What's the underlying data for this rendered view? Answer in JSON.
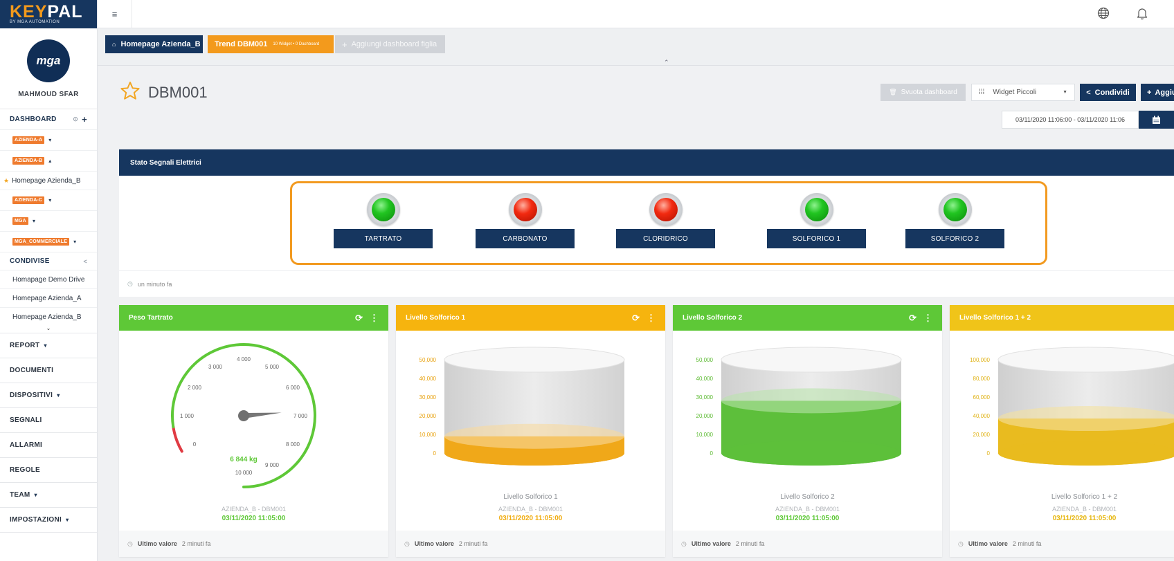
{
  "app": {
    "brand_key": "KEY",
    "brand_pal": "PAL",
    "brand_tagline": "BY MGA AUTOMATION",
    "logo_text": "mga"
  },
  "sidebar": {
    "username": "MAHMOUD SFAR",
    "dashboard_header": "DASHBOARD",
    "groups": [
      {
        "label": "AZIENDA-A",
        "caret": "▾"
      },
      {
        "label": "AZIENDA-B",
        "caret": "▴"
      }
    ],
    "starred_item": "Homepage Azienda_B",
    "groups2": [
      {
        "label": "AZIENDA-C",
        "caret": "▾"
      },
      {
        "label": "MGA",
        "caret": "▾"
      },
      {
        "label": "MGA_COMMERCIALE",
        "caret": "▾"
      }
    ],
    "shared_header": "CONDIVISE",
    "shared_items": [
      "Homapage Demo Drive",
      "Homepage Azienda_A",
      "Homepage Azienda_B"
    ],
    "menu": [
      {
        "label": "REPORT",
        "caret": "▾"
      },
      {
        "label": "DOCUMENTI",
        "caret": ""
      },
      {
        "label": "DISPOSITIVI",
        "caret": "▾"
      },
      {
        "label": "SEGNALI",
        "caret": ""
      },
      {
        "label": "ALLARMI",
        "caret": ""
      },
      {
        "label": "REGOLE",
        "caret": ""
      },
      {
        "label": "TEAM",
        "caret": "▾"
      },
      {
        "label": "IMPOSTAZIONI",
        "caret": "▾"
      }
    ]
  },
  "tabs": {
    "home": "Homepage Azienda_B",
    "trend": "Trend DBM001",
    "trend_meta": "10 Widget • 0 Dashboard",
    "add": "Aggiungi dashboard figlia"
  },
  "header": {
    "title": "DBM001",
    "clear_label": "Svuota dashboard",
    "widget_size": "Widget Piccoli",
    "share_label": "Condividi",
    "add_label": "Aggiungi",
    "date_range": "03/11/2020 11:06:00 - 03/11/2020 11:06"
  },
  "status_panel": {
    "title": "Stato Segnali Elettrici",
    "signals": [
      {
        "label": "TARTRATO",
        "state": "green"
      },
      {
        "label": "CARBONATO",
        "state": "red"
      },
      {
        "label": "CLORIDRICO",
        "state": "red"
      },
      {
        "label": "SOLFORICO 1",
        "state": "green"
      },
      {
        "label": "SOLFORICO 2",
        "state": "green"
      }
    ],
    "updated": "un minuto fa"
  },
  "widgets": [
    {
      "title": "Peso Tartrato",
      "color": "#5ec837",
      "type": "gauge",
      "gauge": {
        "min": 0,
        "max": 10000,
        "value": 6844,
        "display": "6 844 kg",
        "ticks": [
          "0",
          "1 000",
          "2 000",
          "3 000",
          "4 000",
          "5 000",
          "6 000",
          "7 000",
          "8 000",
          "9 000",
          "10 000"
        ]
      },
      "source": "AZIENDA_B - DBM001",
      "timestamp": "03/11/2020 11:05:00",
      "ts_color": "#5ec837",
      "footer_label": "Ultimo valore",
      "footer_time": "2 minuti fa"
    },
    {
      "title": "Livello Solforico 1",
      "color": "#f6b40e",
      "type": "tank",
      "tank": {
        "max": 50000,
        "value": 9000,
        "ticks": [
          "0",
          "10,000",
          "20,000",
          "30,000",
          "40,000",
          "50,000"
        ],
        "label": "Livello Solforico 1",
        "fill": "#f0a81a",
        "axis_color": "#e8a20f"
      },
      "source": "AZIENDA_B - DBM001",
      "timestamp": "03/11/2020 11:05:00",
      "ts_color": "#f0ad12",
      "footer_label": "Ultimo valore",
      "footer_time": "2 minuti fa"
    },
    {
      "title": "Livello Solforico 2",
      "color": "#5ec837",
      "type": "tank",
      "tank": {
        "max": 50000,
        "value": 28000,
        "ticks": [
          "0",
          "10,000",
          "20,000",
          "30,000",
          "40,000",
          "50,000"
        ],
        "label": "Livello Solforico 2",
        "fill": "#5dbf3b",
        "axis_color": "#5aba2f"
      },
      "source": "AZIENDA_B - DBM001",
      "timestamp": "03/11/2020 11:05:00",
      "ts_color": "#5ec837",
      "footer_label": "Ultimo valore",
      "footer_time": "2 minuti fa"
    },
    {
      "title": "Livello Solforico 1 + 2",
      "color": "#f0c419",
      "type": "tank",
      "tank": {
        "max": 100000,
        "value": 37000,
        "ticks": [
          "0",
          "20,000",
          "40,000",
          "60,000",
          "80,000",
          "100,000"
        ],
        "label": "Livello Solforico 1 + 2",
        "fill": "#e9bb1f",
        "axis_color": "#e0b214"
      },
      "source": "AZIENDA_B - DBM001",
      "timestamp": "03/11/2020 11:05:00",
      "ts_color": "#e6b60f",
      "footer_label": "Ultimo valore",
      "footer_time": "2 minuti fa"
    }
  ]
}
